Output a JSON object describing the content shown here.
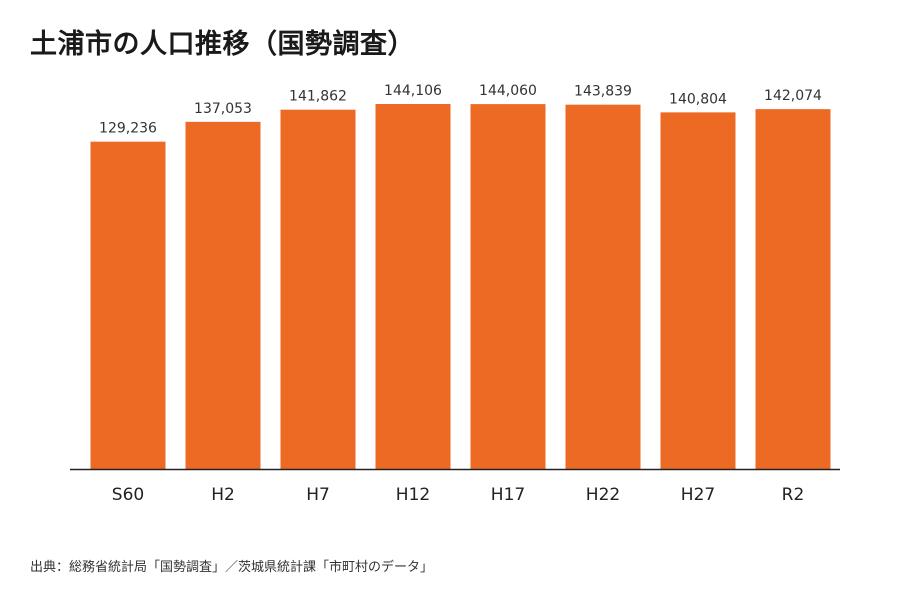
{
  "title": "土浦市の人口推移（国勢調査）",
  "source": "出典：総務省統計局「国勢調査」／茨城県統計課「市町村のデータ」",
  "colors": {
    "bar": "#ec6a24",
    "axis": "#222222",
    "label": "#333333"
  },
  "chart_data": {
    "type": "bar",
    "title": "土浦市の人口推移（国勢調査）",
    "xlabel": "",
    "ylabel": "",
    "categories": [
      "S60",
      "H2",
      "H7",
      "H12",
      "H17",
      "H22",
      "H27",
      "R2"
    ],
    "values": [
      129236,
      137053,
      141862,
      144106,
      144060,
      143839,
      140804,
      142074
    ],
    "value_labels": [
      "129,236",
      "137,053",
      "141,862",
      "144,106",
      "144,060",
      "143,839",
      "140,804",
      "142,074"
    ],
    "ylim": [
      0,
      144106
    ],
    "grid": false,
    "legend": "none"
  }
}
